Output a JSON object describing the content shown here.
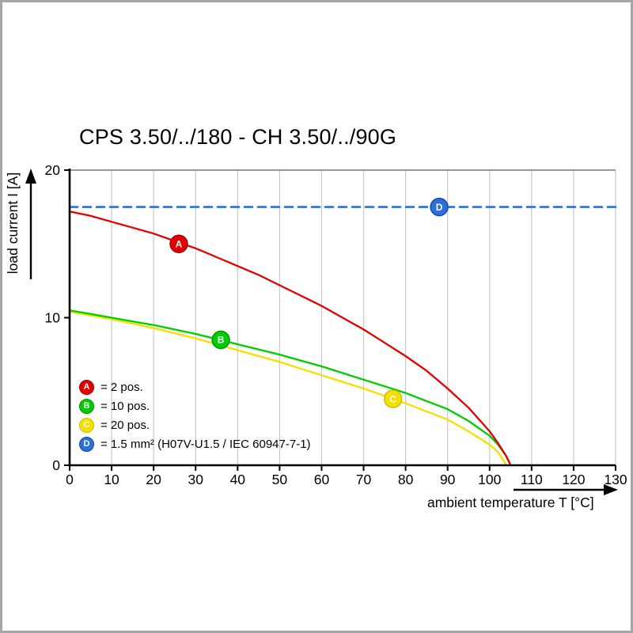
{
  "frame": {
    "border_color": "#a6a6a6",
    "background": "#ffffff"
  },
  "chart_data": {
    "type": "line",
    "title": "CPS 3.50/../180 - CH 3.50/../90G",
    "xlabel": "ambient temperature T [°C]",
    "ylabel": "load current I [A]",
    "xlim": [
      0,
      130
    ],
    "ylim": [
      0,
      20
    ],
    "x_ticks": [
      0,
      10,
      20,
      30,
      40,
      50,
      60,
      70,
      80,
      90,
      100,
      110,
      120,
      130
    ],
    "y_ticks": [
      0,
      10,
      20
    ],
    "grid": "vertical",
    "grid_color": "#c9c9c9",
    "legend_position": "bottom-left-inside",
    "series": [
      {
        "id": "A",
        "name": "2 pos.",
        "color": "#e20000",
        "stroke": "#a80000",
        "style": "solid",
        "marker_at": {
          "x": 26,
          "y": 15.0
        },
        "points": [
          [
            0,
            17.2
          ],
          [
            5,
            16.9
          ],
          [
            10,
            16.5
          ],
          [
            15,
            16.1
          ],
          [
            20,
            15.7
          ],
          [
            25,
            15.2
          ],
          [
            30,
            14.7
          ],
          [
            35,
            14.1
          ],
          [
            40,
            13.5
          ],
          [
            45,
            12.9
          ],
          [
            50,
            12.2
          ],
          [
            55,
            11.5
          ],
          [
            60,
            10.8
          ],
          [
            65,
            10.0
          ],
          [
            70,
            9.2
          ],
          [
            75,
            8.3
          ],
          [
            80,
            7.4
          ],
          [
            85,
            6.4
          ],
          [
            90,
            5.2
          ],
          [
            95,
            3.9
          ],
          [
            100,
            2.3
          ],
          [
            102,
            1.5
          ],
          [
            104,
            0.6
          ],
          [
            105,
            0
          ]
        ]
      },
      {
        "id": "B",
        "name": "10 pos.",
        "color": "#00cc00",
        "stroke": "#009200",
        "style": "solid",
        "marker_at": {
          "x": 36,
          "y": 8.5
        },
        "points": [
          [
            0,
            10.5
          ],
          [
            5,
            10.25
          ],
          [
            10,
            10.0
          ],
          [
            15,
            9.75
          ],
          [
            20,
            9.5
          ],
          [
            25,
            9.2
          ],
          [
            30,
            8.9
          ],
          [
            35,
            8.55
          ],
          [
            40,
            8.2
          ],
          [
            45,
            7.85
          ],
          [
            50,
            7.5
          ],
          [
            55,
            7.1
          ],
          [
            60,
            6.7
          ],
          [
            65,
            6.25
          ],
          [
            70,
            5.8
          ],
          [
            75,
            5.35
          ],
          [
            80,
            4.9
          ],
          [
            85,
            4.35
          ],
          [
            90,
            3.8
          ],
          [
            95,
            3.0
          ],
          [
            100,
            2.0
          ],
          [
            102,
            1.4
          ],
          [
            104,
            0.6
          ],
          [
            105,
            0
          ]
        ]
      },
      {
        "id": "C",
        "name": "20 pos.",
        "color": "#f2e100",
        "stroke": "#cdb900",
        "style": "solid",
        "marker_at": {
          "x": 77,
          "y": 4.5
        },
        "points": [
          [
            0,
            10.4
          ],
          [
            5,
            10.15
          ],
          [
            10,
            9.9
          ],
          [
            15,
            9.6
          ],
          [
            20,
            9.3
          ],
          [
            25,
            8.95
          ],
          [
            30,
            8.6
          ],
          [
            35,
            8.2
          ],
          [
            40,
            7.8
          ],
          [
            45,
            7.4
          ],
          [
            50,
            7.0
          ],
          [
            55,
            6.55
          ],
          [
            60,
            6.1
          ],
          [
            65,
            5.65
          ],
          [
            70,
            5.2
          ],
          [
            75,
            4.7
          ],
          [
            80,
            4.2
          ],
          [
            85,
            3.65
          ],
          [
            90,
            3.1
          ],
          [
            95,
            2.3
          ],
          [
            100,
            1.4
          ],
          [
            102,
            0.9
          ],
          [
            104,
            0
          ]
        ]
      },
      {
        "id": "D",
        "name": "1.5 mm² (H07V-U1.5 / IEC 60947-7-1)",
        "color": "#2e6ed9",
        "stroke": "#1248a8",
        "style": "dashed",
        "marker_at": {
          "x": 88,
          "y": 17.5
        },
        "points": [
          [
            0,
            17.5
          ],
          [
            130,
            17.5
          ]
        ]
      }
    ],
    "legend": {
      "items": [
        {
          "key": "A",
          "label": "= 2 pos."
        },
        {
          "key": "B",
          "label": "= 10 pos."
        },
        {
          "key": "C",
          "label": "= 20 pos."
        },
        {
          "key": "D",
          "label": "= 1.5 mm² (H07V-U1.5 / IEC 60947-7-1)"
        }
      ]
    }
  }
}
